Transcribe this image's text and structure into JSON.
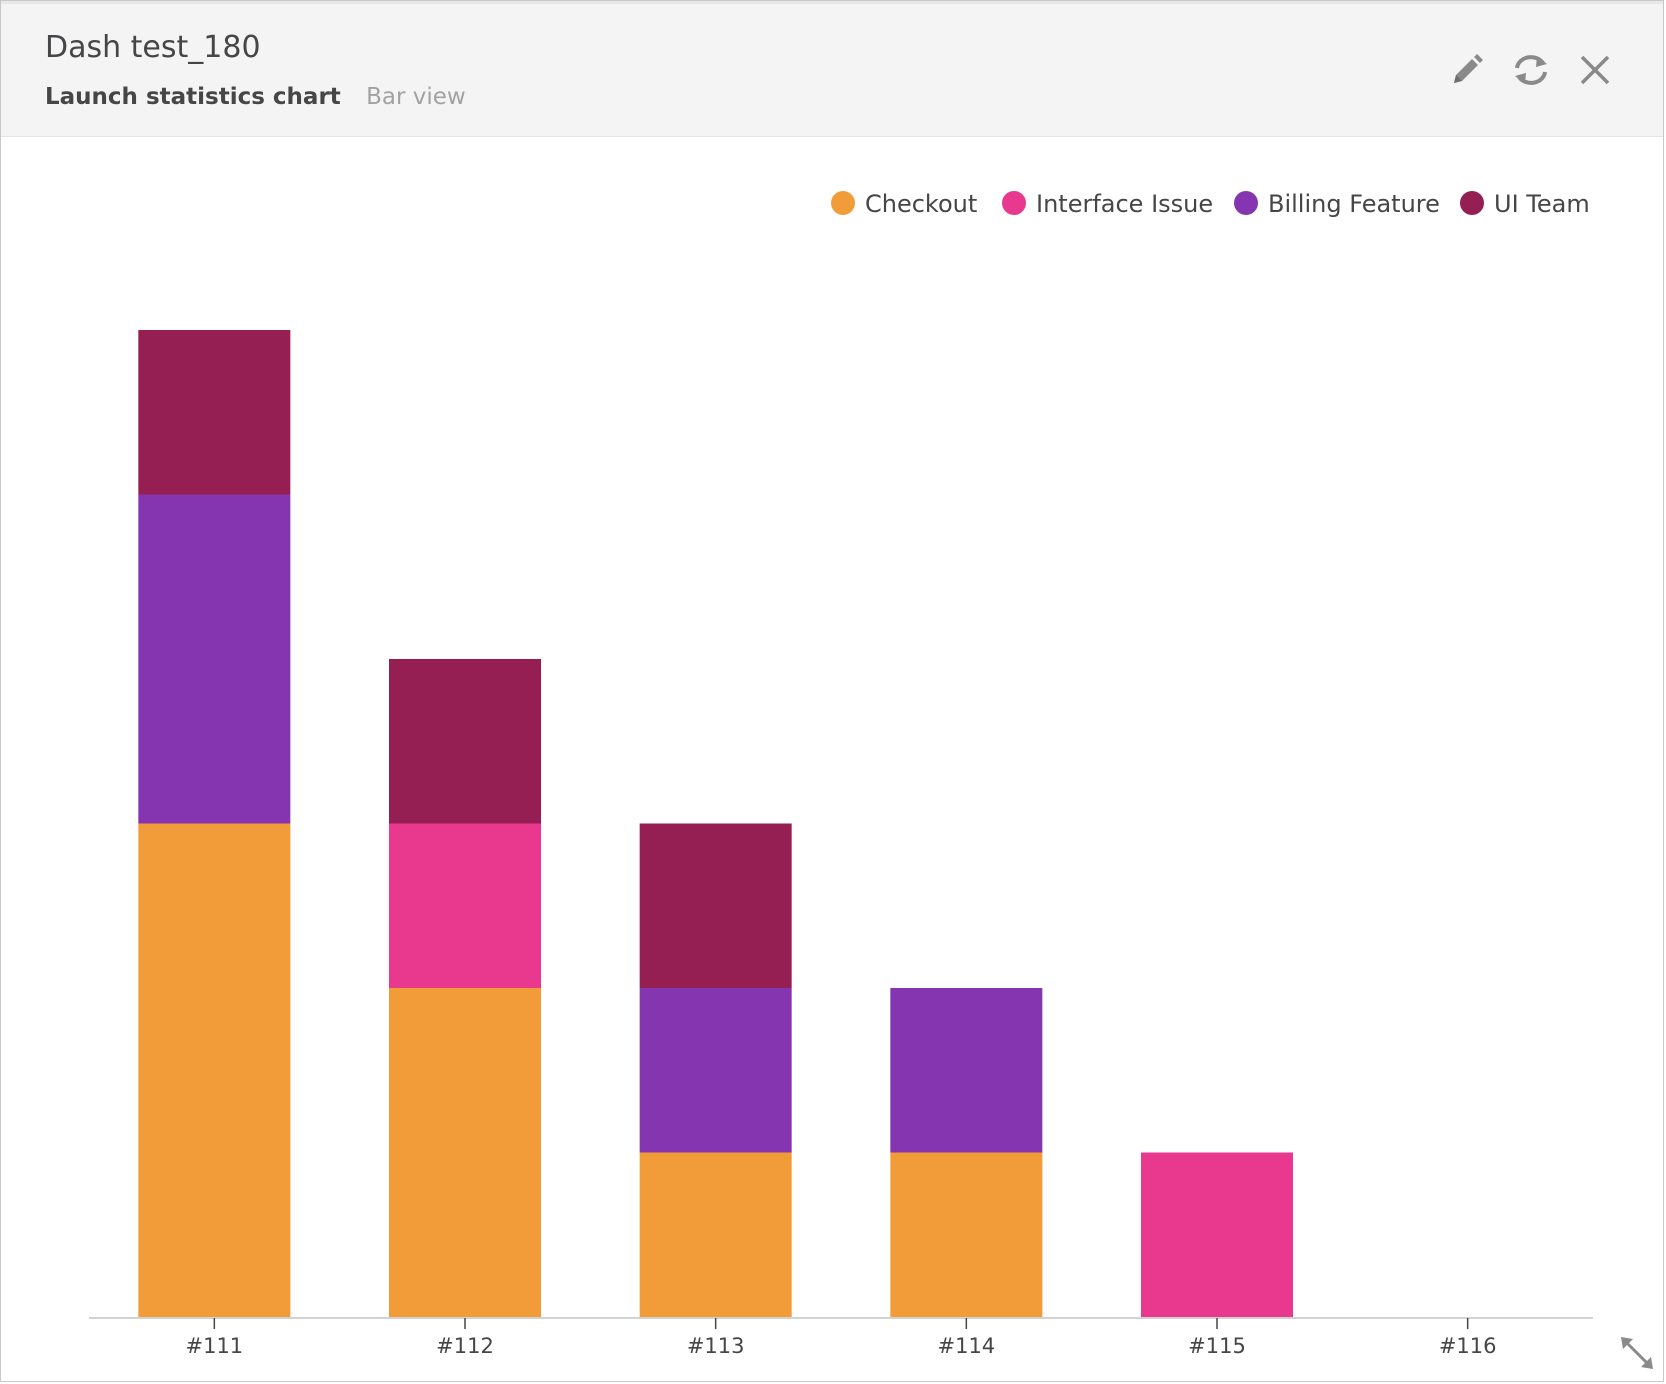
{
  "widget": {
    "title": "Dash test_180",
    "chart_type_label": "Launch statistics chart",
    "view_label": "Bar view",
    "actions": [
      {
        "name": "edit-icon"
      },
      {
        "name": "refresh-icon"
      },
      {
        "name": "close-icon"
      }
    ],
    "resize_icon": "resize-icon"
  },
  "chart_data": {
    "type": "bar",
    "stacked": true,
    "categories": [
      "#111",
      "#112",
      "#113",
      "#114",
      "#115",
      "#116"
    ],
    "series": [
      {
        "name": "Checkout",
        "color": "#f29c39",
        "values": [
          3,
          2,
          1,
          1,
          0,
          0
        ]
      },
      {
        "name": "Interface Issue",
        "color": "#e9398f",
        "values": [
          0,
          1,
          0,
          0,
          1,
          0
        ]
      },
      {
        "name": "Billing Feature",
        "color": "#8635b0",
        "values": [
          2,
          0,
          1,
          1,
          0,
          0
        ]
      },
      {
        "name": "UI Team",
        "color": "#951f53",
        "values": [
          1,
          1,
          1,
          0,
          0,
          0
        ]
      }
    ],
    "ylim": [
      0,
      6
    ],
    "legend_position": "top-right",
    "grid": false
  }
}
